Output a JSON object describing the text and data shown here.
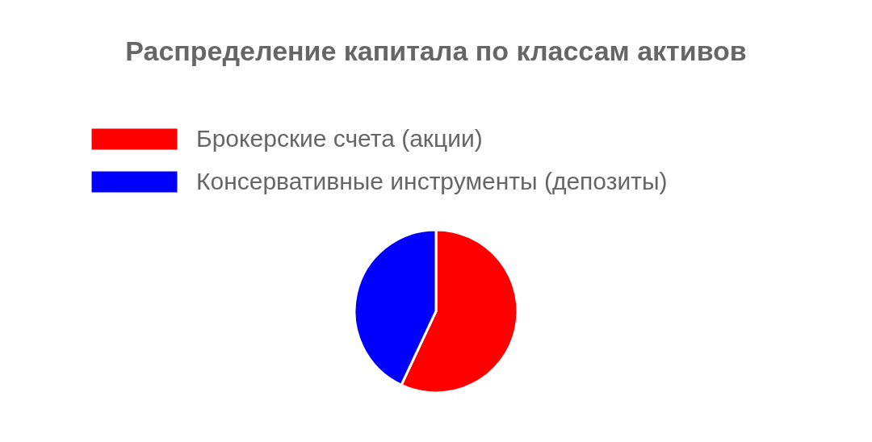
{
  "chart_data": {
    "type": "pie",
    "title": "Распределение капитала по классам активов",
    "categories": [
      "Брокерские счета (акции)",
      "Консервативные инструменты (депозиты)"
    ],
    "values": [
      57,
      43
    ],
    "colors": [
      "#ff0000",
      "#0000ff"
    ],
    "legend": "top"
  }
}
